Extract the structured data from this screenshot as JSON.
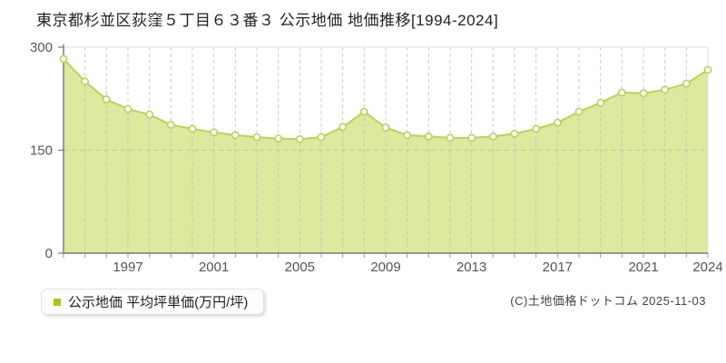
{
  "title": "東京都杉並区荻窪５丁目６３番３ 公示地価 地価推移[1994-2024]",
  "legend": {
    "label": "公示地価 平均坪単価(万円/坪)",
    "marker_color": "#a3c81c"
  },
  "copyright": "(C)土地価格ドットコム 2025-11-03",
  "chart_data": {
    "type": "area",
    "title": "東京都杉並区荻窪５丁目６３番３ 公示地価 地価推移[1994-2024]",
    "xlabel": "",
    "ylabel": "平均坪単価(万円/坪)",
    "x": [
      1994,
      1995,
      1996,
      1997,
      1998,
      1999,
      2000,
      2001,
      2002,
      2003,
      2004,
      2005,
      2006,
      2007,
      2008,
      2009,
      2010,
      2011,
      2012,
      2013,
      2014,
      2015,
      2016,
      2017,
      2018,
      2019,
      2020,
      2021,
      2022,
      2023,
      2024
    ],
    "series": [
      {
        "name": "公示地価 平均坪単価(万円/坪)",
        "values": [
          283,
          250,
          224,
          210,
          202,
          187,
          181,
          176,
          172,
          169,
          167,
          166,
          169,
          184,
          206,
          183,
          172,
          170,
          168,
          168,
          170,
          174,
          181,
          190,
          206,
          219,
          234,
          233,
          238,
          247,
          267
        ]
      }
    ],
    "ylim": [
      0,
      300
    ],
    "yticks": [
      0,
      150,
      300
    ],
    "xtick_labels": [
      "1997",
      "2001",
      "2005",
      "2009",
      "2013",
      "2017",
      "2021",
      "2024"
    ],
    "grid": "vertical dashed line per year; horizontal dashed line at 150",
    "legend_position": "bottom-left",
    "colors": {
      "fill": "#dce99e",
      "line": "#b7d35c",
      "marker_fill": "#ffffff",
      "grid": "#bcbcbc",
      "axis": "#777777",
      "border": "#dddddd",
      "tick_text": "#555555"
    }
  }
}
